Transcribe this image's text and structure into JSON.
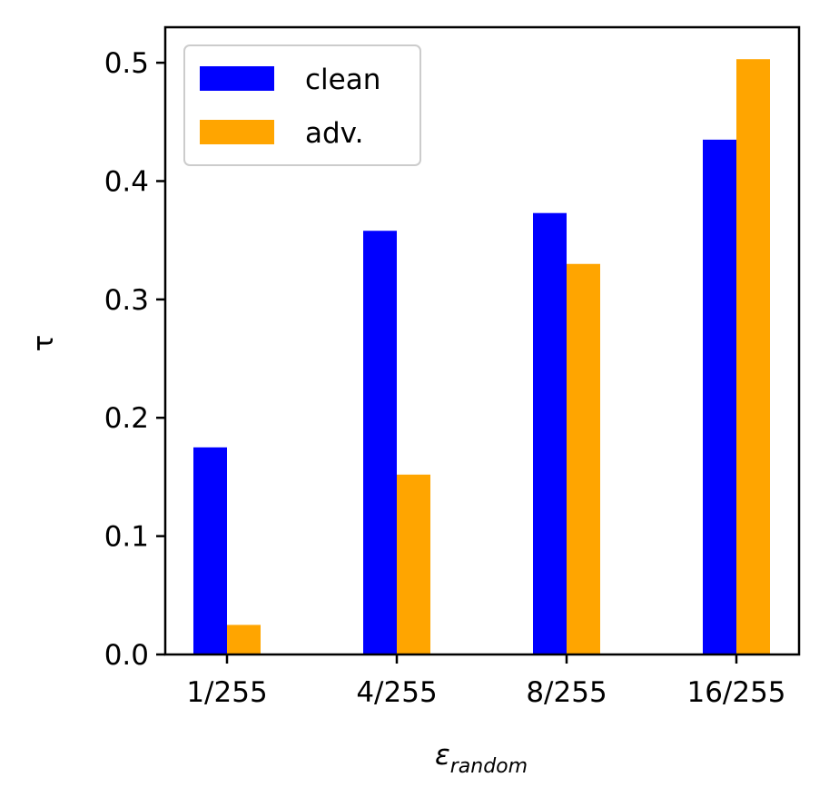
{
  "chart_data": {
    "type": "bar",
    "categories": [
      "1/255",
      "4/255",
      "8/255",
      "16/255"
    ],
    "series": [
      {
        "name": "clean",
        "color": "#0000ff",
        "values": [
          0.175,
          0.358,
          0.373,
          0.435
        ]
      },
      {
        "name": "adv.",
        "color": "#ffa500",
        "values": [
          0.025,
          0.152,
          0.33,
          0.503
        ]
      }
    ],
    "xlabel_main": "ε",
    "xlabel_sub": "random",
    "ylabel": "τ",
    "ylim": [
      0,
      0.53
    ],
    "yticks": [
      "0.0",
      "0.1",
      "0.2",
      "0.3",
      "0.4",
      "0.5"
    ],
    "grid": false,
    "legend_position": "top-left"
  }
}
